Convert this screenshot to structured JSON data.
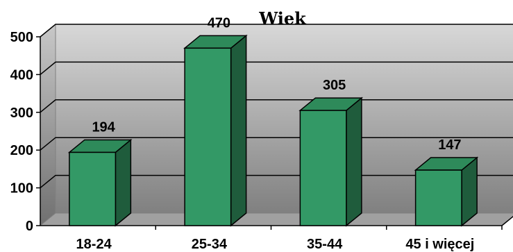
{
  "chart_data": {
    "type": "bar",
    "title": "Wiek",
    "categories": [
      "18-24",
      "25-34",
      "35-44",
      "45 i więcej"
    ],
    "values": [
      194,
      470,
      305,
      147
    ],
    "data_labels": [
      "194",
      "470",
      "305",
      "147"
    ],
    "ylim": [
      0,
      500
    ],
    "yticks": [
      "0",
      "100",
      "200",
      "300",
      "400",
      "500"
    ],
    "xlabel": "",
    "ylabel": "",
    "grid": true,
    "style": "3d-column",
    "colors": {
      "bar_front": "#339966",
      "bar_top": "#2e8a5a",
      "bar_side": "#1f5c3c",
      "bar_outline": "#000000",
      "wall_top": "#d8d8d8",
      "wall_bottom": "#808080",
      "floor": "#a0a0a0",
      "gridline": "#000000"
    }
  }
}
